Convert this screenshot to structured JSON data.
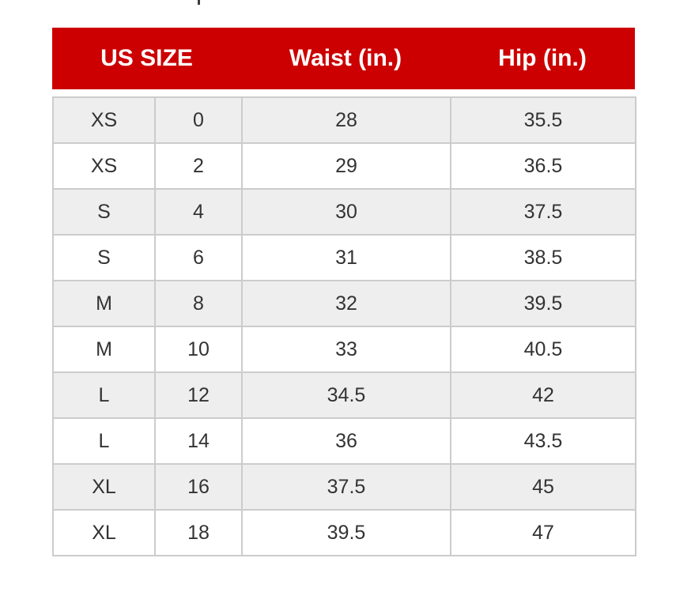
{
  "page": {
    "background": "#ffffff"
  },
  "colors": {
    "header_bg": "#cc0000",
    "header_text": "#ffffff",
    "alt_row_bg": "#eeeeee",
    "row_bg": "#ffffff",
    "border": "#cccccc",
    "body_text": "#333333"
  },
  "chart_data": {
    "type": "table",
    "header": [
      "US SIZE",
      "Waist (in.)",
      "Hip (in.)"
    ],
    "rows": [
      [
        "XS",
        "0",
        "28",
        "35.5"
      ],
      [
        "XS",
        "2",
        "29",
        "36.5"
      ],
      [
        "S",
        "4",
        "30",
        "37.5"
      ],
      [
        "S",
        "6",
        "31",
        "38.5"
      ],
      [
        "M",
        "8",
        "32",
        "39.5"
      ],
      [
        "M",
        "10",
        "33",
        "40.5"
      ],
      [
        "L",
        "12",
        "34.5",
        "42"
      ],
      [
        "L",
        "14",
        "36",
        "43.5"
      ],
      [
        "XL",
        "16",
        "37.5",
        "45"
      ],
      [
        "XL",
        "18",
        "39.5",
        "47"
      ]
    ],
    "layout": {
      "header_colspans": [
        2,
        1,
        1
      ],
      "row_shading": "odd rows shaded light gray",
      "grid": true
    }
  }
}
